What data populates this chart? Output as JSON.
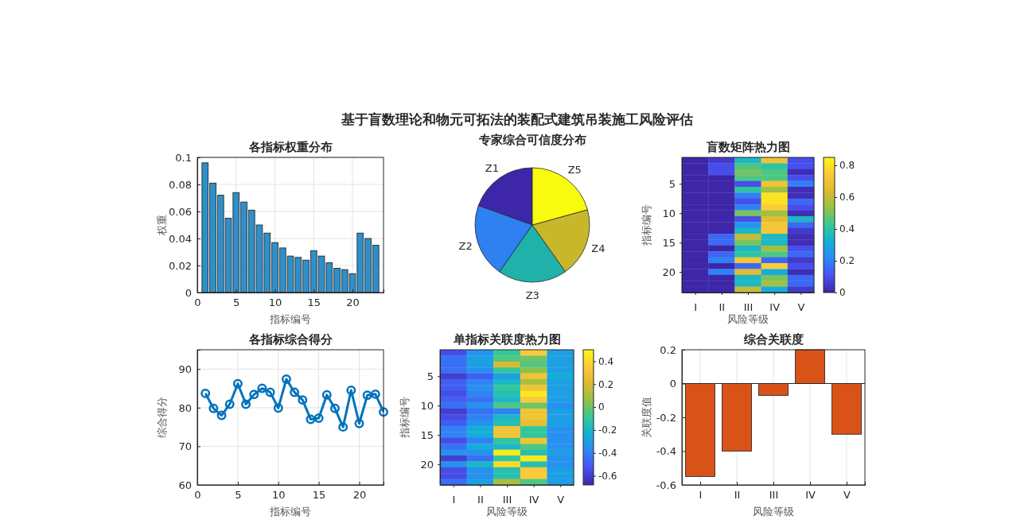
{
  "chart_data": [
    {
      "type": "bar",
      "title": "各指标权重分布",
      "xlabel": "指标编号",
      "ylabel": "权重",
      "annotations": [
        "基于盲数理论和物元可拓法的装配式建筑吊装施工风险评估"
      ],
      "x": [
        1,
        2,
        3,
        4,
        5,
        6,
        7,
        8,
        9,
        10,
        11,
        12,
        13,
        14,
        15,
        16,
        17,
        18,
        19,
        20,
        21,
        22,
        23
      ],
      "values": [
        0.096,
        0.081,
        0.072,
        0.055,
        0.074,
        0.067,
        0.061,
        0.05,
        0.044,
        0.037,
        0.033,
        0.027,
        0.026,
        0.024,
        0.031,
        0.027,
        0.022,
        0.018,
        0.017,
        0.014,
        0.044,
        0.04,
        0.035
      ],
      "color": "#2f8fc9",
      "xlim": [
        0,
        24
      ],
      "xticks": [
        0,
        5,
        10,
        15,
        20
      ],
      "ylim": [
        0,
        0.1
      ],
      "yticks": [
        0,
        0.02,
        0.04,
        0.06,
        0.08,
        0.1
      ],
      "grid": true
    },
    {
      "type": "pie",
      "title": "专家综合可信度分布",
      "categories": [
        "Z1",
        "Z2",
        "Z3",
        "Z4",
        "Z5"
      ],
      "values": [
        19.5,
        20.8,
        19.5,
        19.5,
        20.7
      ],
      "colors": [
        "#3e26a8",
        "#2f80f0",
        "#20b2aa",
        "#c8b72a",
        "#f9fb0e"
      ]
    },
    {
      "type": "heatmap",
      "title": "盲数矩阵热力图",
      "xlabel": "风险等级",
      "ylabel": "指标编号",
      "categories": [
        "I",
        "II",
        "III",
        "IV",
        "V"
      ],
      "y_categories": [
        null,
        null,
        null,
        null,
        "5",
        null,
        null,
        null,
        null,
        "10",
        null,
        null,
        null,
        null,
        "15",
        null,
        null,
        null,
        null,
        "20",
        null,
        null,
        null
      ],
      "cells": [
        [
          0,
          0.05,
          0.35,
          0.7,
          0.1
        ],
        [
          0,
          0.1,
          0.45,
          0.4,
          0.1
        ],
        [
          0,
          0.1,
          0.5,
          0.45,
          0.02
        ],
        [
          0,
          0,
          0.45,
          0.45,
          0.1
        ],
        [
          0,
          0,
          0.1,
          0.7,
          0.2
        ],
        [
          0,
          0,
          0.4,
          0.55,
          0.02
        ],
        [
          0,
          0,
          0.2,
          0.8,
          0.02
        ],
        [
          0,
          0,
          0.1,
          0.8,
          0.15
        ],
        [
          0,
          0,
          0.2,
          0.75,
          0.1
        ],
        [
          0,
          0,
          0.5,
          0.55,
          0.02
        ],
        [
          0,
          0,
          0.1,
          0.65,
          0.35
        ],
        [
          0,
          0,
          0.25,
          0.72,
          0.15
        ],
        [
          0,
          0,
          0.35,
          0.72,
          0.05
        ],
        [
          0,
          0.15,
          0.6,
          0.35,
          0.02
        ],
        [
          0,
          0.15,
          0.5,
          0.35,
          0.02
        ],
        [
          0,
          0,
          0.35,
          0.55,
          0.1
        ],
        [
          0,
          0.15,
          0.4,
          0.45,
          0.15
        ],
        [
          0,
          0.2,
          0.72,
          0.15,
          0.05
        ],
        [
          0,
          0,
          0.15,
          0.75,
          0.1
        ],
        [
          0,
          0.2,
          0.65,
          0.3,
          0.02
        ],
        [
          0,
          0,
          0.35,
          0.5,
          0.15
        ],
        [
          0,
          0,
          0.35,
          0.55,
          0.15
        ],
        [
          0,
          0,
          0.6,
          0.3,
          0.05
        ]
      ],
      "clim": [
        0,
        0.85
      ],
      "cticks": [
        0,
        0.2,
        0.4,
        0.6,
        0.8
      ]
    },
    {
      "type": "line",
      "title": "各指标综合得分",
      "xlabel": "指标编号",
      "ylabel": "综合得分",
      "x": [
        1,
        2,
        3,
        4,
        5,
        6,
        7,
        8,
        9,
        10,
        11,
        12,
        13,
        14,
        15,
        16,
        17,
        18,
        19,
        20,
        21,
        22,
        23
      ],
      "values": [
        83.7,
        79.8,
        78,
        80.9,
        86.2,
        80.9,
        83.4,
        85,
        84,
        79.9,
        87.4,
        84,
        82,
        77,
        77.3,
        83.3,
        79.8,
        75,
        84.5,
        75.9,
        83.2,
        83.5,
        78.9
      ],
      "color": "#0072bd",
      "marker": "circle",
      "line_style": "solid",
      "xlim": [
        0,
        23
      ],
      "xticks": [
        0,
        5,
        10,
        15,
        20
      ],
      "ylim": [
        60,
        95
      ],
      "yticks": [
        60,
        70,
        80,
        90
      ],
      "grid": true
    },
    {
      "type": "heatmap",
      "title": "单指标关联度热力图",
      "xlabel": "风险等级",
      "ylabel": "指标编号",
      "categories": [
        "I",
        "II",
        "III",
        "IV",
        "V"
      ],
      "y_categories": [
        null,
        null,
        null,
        null,
        "5",
        null,
        null,
        null,
        null,
        "10",
        null,
        null,
        null,
        null,
        "15",
        null,
        null,
        null,
        null,
        "20",
        null,
        null,
        null
      ],
      "cells": [
        [
          -0.55,
          -0.35,
          -0.1,
          0.35,
          -0.3
        ],
        [
          -0.45,
          -0.3,
          -0.05,
          0,
          -0.3
        ],
        [
          -0.45,
          -0.3,
          0.2,
          -0.05,
          -0.3
        ],
        [
          -0.45,
          -0.35,
          -0.1,
          0.05,
          -0.3
        ],
        [
          -0.6,
          -0.5,
          -0.3,
          0.3,
          -0.25
        ],
        [
          -0.5,
          -0.4,
          -0.2,
          0.1,
          -0.3
        ],
        [
          -0.5,
          -0.35,
          -0.1,
          0.3,
          -0.3
        ],
        [
          -0.55,
          -0.4,
          -0.15,
          0.45,
          -0.3
        ],
        [
          -0.5,
          -0.45,
          -0.2,
          0.35,
          -0.3
        ],
        [
          -0.45,
          -0.35,
          -0.05,
          0,
          -0.35
        ],
        [
          -0.6,
          -0.45,
          -0.4,
          0.3,
          -0.3
        ],
        [
          -0.55,
          -0.4,
          -0.2,
          0.3,
          -0.3
        ],
        [
          -0.5,
          -0.35,
          -0.15,
          0.25,
          -0.3
        ],
        [
          -0.4,
          -0.25,
          0.3,
          -0.1,
          -0.35
        ],
        [
          -0.4,
          -0.25,
          0.3,
          -0.1,
          -0.35
        ],
        [
          -0.55,
          -0.4,
          -0.1,
          0.3,
          -0.35
        ],
        [
          -0.45,
          -0.25,
          -0.2,
          -0.05,
          -0.35
        ],
        [
          -0.35,
          -0.35,
          0.45,
          -0.15,
          -0.3
        ],
        [
          -0.6,
          -0.45,
          -0.1,
          0.45,
          -0.35
        ],
        [
          -0.35,
          -0.2,
          0.4,
          -0.15,
          -0.35
        ],
        [
          -0.55,
          -0.35,
          -0.15,
          0.35,
          -0.3
        ],
        [
          -0.55,
          -0.35,
          -0.15,
          0.35,
          -0.3
        ],
        [
          -0.45,
          -0.3,
          0.1,
          -0.05,
          -0.3
        ]
      ],
      "clim": [
        -0.68,
        0.5
      ],
      "cticks": [
        -0.6,
        -0.4,
        -0.2,
        0,
        0.2,
        0.4
      ]
    },
    {
      "type": "bar",
      "title": "综合关联度",
      "xlabel": "风险等级",
      "ylabel": "关联度值",
      "categories": [
        "I",
        "II",
        "III",
        "IV",
        "V"
      ],
      "values": [
        -0.55,
        -0.4,
        -0.07,
        0.2,
        -0.3
      ],
      "color": "#d95319",
      "ylim": [
        -0.6,
        0.2
      ],
      "yticks": [
        -0.6,
        -0.4,
        -0.2,
        0,
        0.2
      ],
      "grid": "x"
    }
  ]
}
